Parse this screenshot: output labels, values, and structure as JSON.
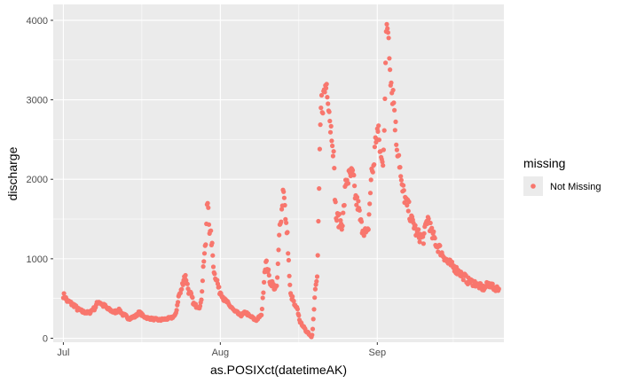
{
  "chart_data": {
    "type": "scatter",
    "xlabel": "as.POSIXct(datetimeAK)",
    "ylabel": "discharge",
    "x_tick_labels": [
      "Jul",
      "Aug",
      "Sep"
    ],
    "x_tick_dates": [
      "2021-07-01",
      "2021-08-01",
      "2021-09-01"
    ],
    "x_range": [
      "2021-06-29",
      "2021-09-26"
    ],
    "ylim": [
      -50,
      4200
    ],
    "y_ticks": [
      0,
      1000,
      2000,
      3000,
      4000
    ],
    "grid": true,
    "panel_background": "#ebebeb",
    "point_color": "#f8766d",
    "legend": {
      "title": "missing",
      "position": "right",
      "entries": [
        {
          "label": "Not Missing",
          "color": "#f8766d"
        }
      ]
    },
    "series": [
      {
        "name": "Not Missing",
        "keypoints": [
          [
            "2021-07-01",
            540
          ],
          [
            "2021-07-02",
            460
          ],
          [
            "2021-07-03",
            420
          ],
          [
            "2021-07-04",
            360
          ],
          [
            "2021-07-05",
            330
          ],
          [
            "2021-07-06",
            320
          ],
          [
            "2021-07-07",
            370
          ],
          [
            "2021-07-08",
            460
          ],
          [
            "2021-07-09",
            410
          ],
          [
            "2021-07-10",
            360
          ],
          [
            "2021-07-11",
            330
          ],
          [
            "2021-07-12",
            350
          ],
          [
            "2021-07-13",
            290
          ],
          [
            "2021-07-14",
            250
          ],
          [
            "2021-07-15",
            270
          ],
          [
            "2021-07-16",
            320
          ],
          [
            "2021-07-17",
            270
          ],
          [
            "2021-07-18",
            250
          ],
          [
            "2021-07-19",
            240
          ],
          [
            "2021-07-20",
            230
          ],
          [
            "2021-07-21",
            240
          ],
          [
            "2021-07-22",
            250
          ],
          [
            "2021-07-23",
            280
          ],
          [
            "2021-07-24",
            560
          ],
          [
            "2021-07-25",
            780
          ],
          [
            "2021-07-26",
            560
          ],
          [
            "2021-07-27",
            410
          ],
          [
            "2021-07-28",
            400
          ],
          [
            "2021-07-29",
            1100
          ],
          [
            "2021-07-29T12:00",
            1720
          ],
          [
            "2021-07-30",
            1300
          ],
          [
            "2021-07-31",
            780
          ],
          [
            "2021-08-01",
            580
          ],
          [
            "2021-08-02",
            470
          ],
          [
            "2021-08-03",
            400
          ],
          [
            "2021-08-04",
            330
          ],
          [
            "2021-08-05",
            290
          ],
          [
            "2021-08-06",
            320
          ],
          [
            "2021-08-07",
            270
          ],
          [
            "2021-08-08",
            230
          ],
          [
            "2021-08-09",
            280
          ],
          [
            "2021-08-10",
            940
          ],
          [
            "2021-08-11",
            700
          ],
          [
            "2021-08-12",
            620
          ],
          [
            "2021-08-13",
            1550
          ],
          [
            "2021-08-13T12:00",
            1900
          ],
          [
            "2021-08-14",
            1400
          ],
          [
            "2021-08-15",
            520
          ],
          [
            "2021-08-16",
            380
          ],
          [
            "2021-08-17",
            180
          ],
          [
            "2021-08-18",
            90
          ],
          [
            "2021-08-19",
            30
          ],
          [
            "2021-08-20",
            700
          ],
          [
            "2021-08-21",
            2950
          ],
          [
            "2021-08-22",
            3200
          ],
          [
            "2021-08-23",
            2600
          ],
          [
            "2021-08-24",
            1500
          ],
          [
            "2021-08-25",
            1450
          ],
          [
            "2021-08-26",
            2000
          ],
          [
            "2021-08-27",
            2050
          ],
          [
            "2021-08-28",
            1700
          ],
          [
            "2021-08-29",
            1400
          ],
          [
            "2021-08-30",
            1300
          ],
          [
            "2021-08-31",
            2100
          ],
          [
            "2021-09-01",
            2600
          ],
          [
            "2021-09-02",
            2200
          ],
          [
            "2021-09-03",
            3950
          ],
          [
            "2021-09-04",
            3100
          ],
          [
            "2021-09-05",
            2400
          ],
          [
            "2021-09-06",
            1850
          ],
          [
            "2021-09-07",
            1650
          ],
          [
            "2021-09-08",
            1450
          ],
          [
            "2021-09-09",
            1300
          ],
          [
            "2021-09-10",
            1250
          ],
          [
            "2021-09-11",
            1500
          ],
          [
            "2021-09-12",
            1280
          ],
          [
            "2021-09-13",
            1150
          ],
          [
            "2021-09-14",
            1050
          ],
          [
            "2021-09-15",
            950
          ],
          [
            "2021-09-16",
            900
          ],
          [
            "2021-09-17",
            840
          ],
          [
            "2021-09-18",
            780
          ],
          [
            "2021-09-19",
            720
          ],
          [
            "2021-09-20",
            700
          ],
          [
            "2021-09-21",
            660
          ],
          [
            "2021-09-22",
            630
          ],
          [
            "2021-09-23",
            680
          ],
          [
            "2021-09-24",
            640
          ],
          [
            "2021-09-25",
            620
          ]
        ]
      }
    ]
  }
}
